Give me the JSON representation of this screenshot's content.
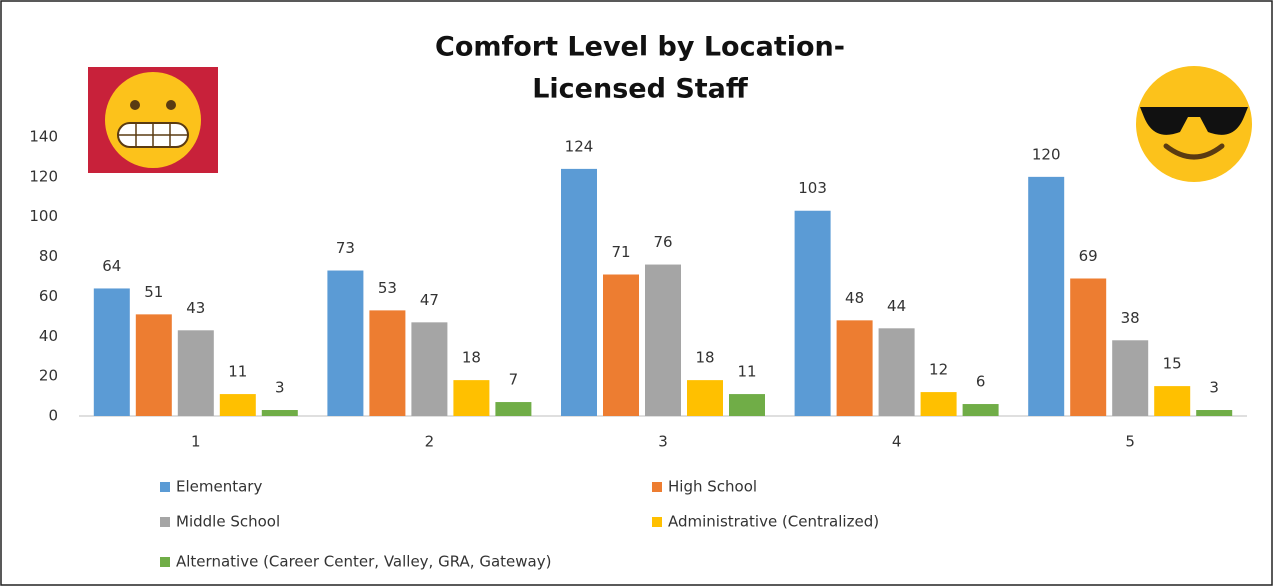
{
  "chart_data": {
    "type": "bar",
    "title": [
      "Comfort Level by Location-",
      "Licensed Staff"
    ],
    "categories": [
      "1",
      "2",
      "3",
      "4",
      "5"
    ],
    "series": [
      {
        "name": "Elementary",
        "color": "#5b9bd5",
        "values": [
          64,
          73,
          124,
          103,
          120
        ]
      },
      {
        "name": "High School",
        "color": "#ed7d31",
        "values": [
          51,
          53,
          71,
          48,
          69
        ]
      },
      {
        "name": "Middle School",
        "color": "#a5a5a5",
        "values": [
          43,
          47,
          76,
          44,
          38
        ]
      },
      {
        "name": "Administrative (Centralized)",
        "color": "#ffc000",
        "values": [
          11,
          18,
          18,
          12,
          15
        ]
      },
      {
        "name": "Alternative (Career Center, Valley, GRA, Gateway)",
        "color": "#70ad47",
        "values": [
          3,
          7,
          11,
          6,
          3
        ]
      }
    ],
    "ylim": [
      0,
      140
    ],
    "yticks": [
      0,
      20,
      40,
      60,
      80,
      100,
      120,
      140
    ],
    "grid": false
  }
}
